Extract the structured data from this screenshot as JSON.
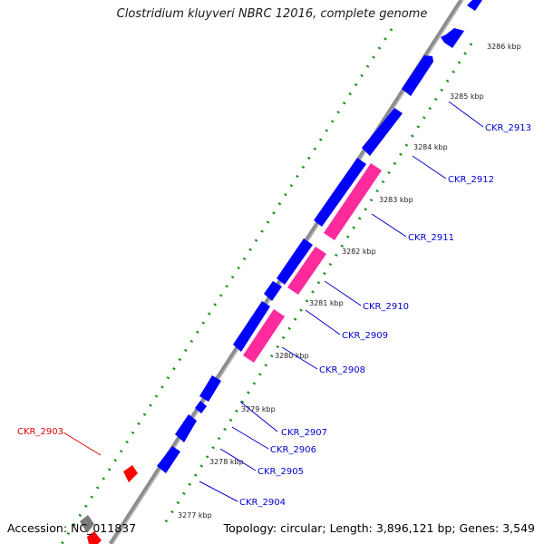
{
  "title": "Clostridium kluyveri NBRC 12016, complete genome",
  "footer": {
    "accession": "Accession: NC_011837",
    "topology": "Topology: circular; Length: 3,896,121 bp; Genes: 3,549"
  },
  "colors": {
    "backbone": "#8c8c8c",
    "forward_gene": "#0000ff",
    "reverse_gene": "#ff2a9c",
    "highlight_gene": "#ff0000",
    "scale_tick": "#1a8f1a",
    "gene_label": "#0000cc",
    "highlight_label": "#e00000"
  },
  "scale_labels": [
    "3286 kbp",
    "3285 kbp",
    "3284 kbp",
    "3283 kbp",
    "3282 kbp",
    "3281 kbp",
    "3280 kbp",
    "3279 kbp",
    "3278 kbp",
    "3277 kbp"
  ],
  "gene_labels": [
    "CKR_2913",
    "CKR_2912",
    "CKR_2911",
    "CKR_2910",
    "CKR_2909",
    "CKR_2908",
    "CKR_2907",
    "CKR_2906",
    "CKR_2905",
    "CKR_2904",
    "CKR_2903"
  ]
}
